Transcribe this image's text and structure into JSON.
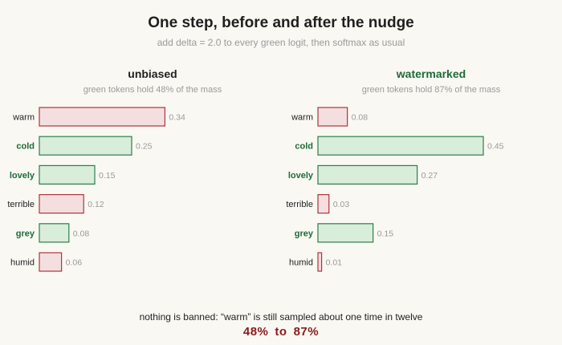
{
  "title": "One step, before and after the nudge",
  "subtitle": "add delta = 2.0 to every green logit, then softmax as usual",
  "colors": {
    "green_fill": "#d9eddb",
    "green_stroke": "#2e7d4a",
    "green_text": "#1e6b3a",
    "red_fill": "#f4dfe0",
    "red_stroke": "#b0343c",
    "label_text": "#222222",
    "value_text": "#9a9a9a",
    "footer_accent": "#8b1a1a"
  },
  "chart_data": [
    {
      "type": "bar",
      "orientation": "horizontal",
      "title": "unbiased",
      "subtitle": "green tokens hold 48% of the mass",
      "title_color": "#1f1f1f",
      "categories": [
        "warm",
        "cold",
        "lovely",
        "terrible",
        "grey",
        "humid"
      ],
      "values": [
        0.34,
        0.25,
        0.15,
        0.12,
        0.08,
        0.06
      ],
      "value_labels": [
        "0.34",
        "0.25",
        "0.15",
        "0.12",
        "0.08",
        "0.06"
      ],
      "groups": [
        "red",
        "green",
        "green",
        "red",
        "green",
        "red"
      ],
      "xlim": [
        0,
        0.45
      ]
    },
    {
      "type": "bar",
      "orientation": "horizontal",
      "title": "watermarked",
      "subtitle": "green tokens hold 87% of the mass",
      "title_color": "#1e6b3a",
      "categories": [
        "warm",
        "cold",
        "lovely",
        "terrible",
        "grey",
        "humid"
      ],
      "values": [
        0.08,
        0.45,
        0.27,
        0.03,
        0.15,
        0.01
      ],
      "value_labels": [
        "0.08",
        "0.45",
        "0.27",
        "0.03",
        "0.15",
        "0.01"
      ],
      "groups": [
        "red",
        "green",
        "green",
        "red",
        "green",
        "red"
      ],
      "xlim": [
        0,
        0.45
      ]
    }
  ],
  "footer": {
    "note": "nothing is banned: “warm” is still sampled about one time in twelve",
    "from": "48%",
    "to_word": "to",
    "to": "87%"
  }
}
